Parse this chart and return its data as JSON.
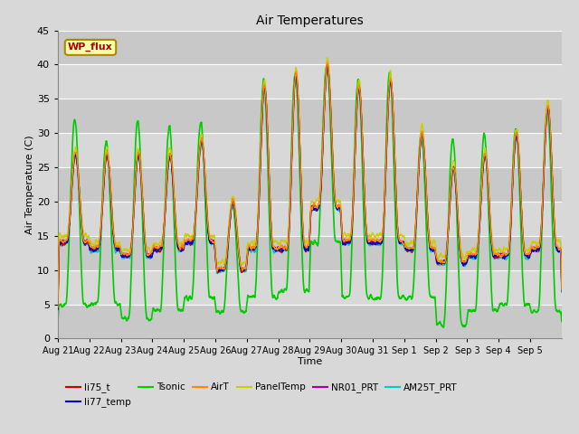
{
  "title": "Air Temperatures",
  "xlabel": "Time",
  "ylabel": "Air Temperature (C)",
  "ylim": [
    0,
    45
  ],
  "yticks": [
    0,
    5,
    10,
    15,
    20,
    25,
    30,
    35,
    40,
    45
  ],
  "fig_bg": "#d8d8d8",
  "plot_bg": "#d8d8d8",
  "band_colors": [
    "#c8c8c8",
    "#d8d8d8"
  ],
  "grid_color": "#ffffff",
  "x_tick_labels": [
    "Aug 21",
    "Aug 22",
    "Aug 23",
    "Aug 24",
    "Aug 25",
    "Aug 26",
    "Aug 27",
    "Aug 28",
    "Aug 29",
    "Aug 30",
    "Aug 31",
    "Sep 1",
    "Sep 2",
    "Sep 3",
    "Sep 4",
    "Sep 5"
  ],
  "n_days": 16,
  "series": {
    "li75_t": {
      "color": "#cc0000",
      "lw": 1.0,
      "zorder": 4
    },
    "li77_temp": {
      "color": "#0000cc",
      "lw": 1.0,
      "zorder": 4
    },
    "Tsonic": {
      "color": "#00cc00",
      "lw": 1.2,
      "zorder": 2
    },
    "AirT": {
      "color": "#ff8800",
      "lw": 1.0,
      "zorder": 5
    },
    "PanelTemp": {
      "color": "#cccc00",
      "lw": 1.0,
      "zorder": 3
    },
    "NR01_PRT": {
      "color": "#aa00aa",
      "lw": 1.0,
      "zorder": 3
    },
    "AM25T_PRT": {
      "color": "#00cccc",
      "lw": 1.2,
      "zorder": 3
    }
  },
  "annotation": {
    "text": "WP_flux",
    "facecolor": "#ffffaa",
    "edgecolor": "#aa8800",
    "textcolor": "#aa0000",
    "fontsize": 8,
    "fontweight": "bold"
  },
  "day_peaks": [
    27,
    27,
    27,
    27,
    29,
    20,
    37,
    39,
    40,
    37,
    38,
    30,
    25,
    27,
    30,
    34
  ],
  "day_bases": [
    14,
    13,
    12,
    13,
    14,
    10,
    13,
    13,
    19,
    14,
    14,
    13,
    11,
    12,
    12,
    13
  ],
  "tsonic_extra": [
    5,
    2,
    5,
    4,
    3,
    0,
    1,
    0,
    0,
    1,
    1,
    0,
    4,
    3,
    1,
    0
  ],
  "tsonic_low_extra": [
    9,
    8,
    9,
    9,
    8,
    6,
    7,
    6,
    5,
    8,
    8,
    7,
    9,
    8,
    7,
    9
  ]
}
